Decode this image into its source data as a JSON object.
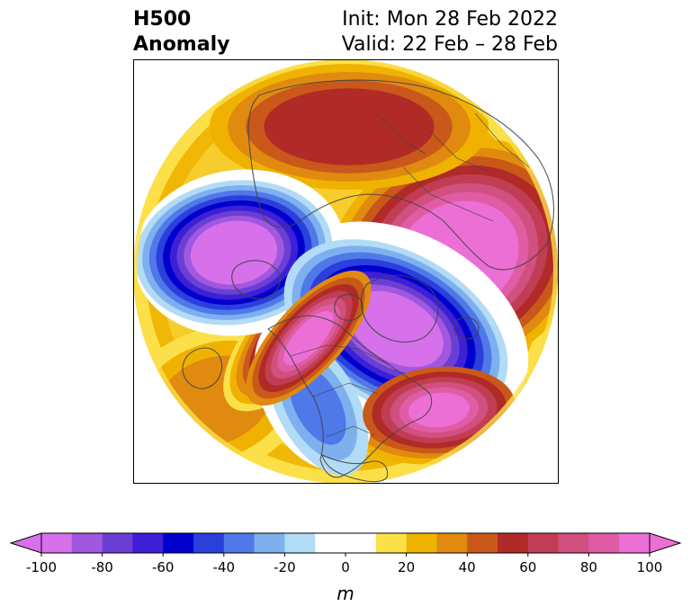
{
  "title": {
    "left_line1": "H500",
    "left_line2": "Anomaly",
    "right_line1": "Init: Mon 28 Feb 2022",
    "right_line2": "Valid: 22 Feb – 28 Feb"
  },
  "colors": {
    "neg": [
      "#d670eb",
      "#a157e0",
      "#6a3fd4",
      "#3d1fd6",
      "#0000cc",
      "#2a3fdc",
      "#4f78e8",
      "#7eb0ef",
      "#b2dbf6"
    ],
    "zero": "#ffffff",
    "pos": [
      "#fbe04a",
      "#f0b200",
      "#e08a10",
      "#c9581a",
      "#b02a27",
      "#c13d53",
      "#d2507f",
      "#e05ca5",
      "#ec6fd6"
    ],
    "coastline": "#444444"
  },
  "colorbar": {
    "unit": "m",
    "ticks": [
      "-100",
      "-80",
      "-60",
      "-40",
      "-20",
      "0",
      "20",
      "40",
      "60",
      "80",
      "100"
    ],
    "min": -100,
    "max": 100,
    "step": 10,
    "extend": "both"
  },
  "map": {
    "projection": "polar stereographic (north pole)",
    "features": [
      {
        "name": "trough-north-pacific",
        "sign": "negative",
        "peak_m": -100
      },
      {
        "name": "trough-canada-arctic",
        "sign": "negative",
        "peak_m": -100
      },
      {
        "name": "trough-eastern-us",
        "sign": "negative",
        "peak_m": -30
      },
      {
        "name": "ridge-siberia-europe",
        "sign": "positive",
        "peak_m": 100
      },
      {
        "name": "ridge-bering-alaska",
        "sign": "positive",
        "peak_m": 100
      },
      {
        "name": "ridge-north-atlantic",
        "sign": "positive",
        "peak_m": 90
      },
      {
        "name": "ridge-far-east-asia",
        "sign": "positive",
        "peak_m": 40
      }
    ]
  }
}
